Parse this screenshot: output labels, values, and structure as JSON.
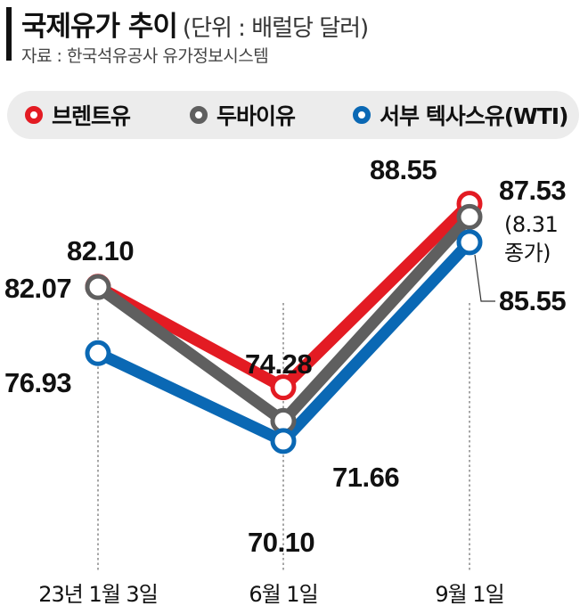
{
  "header": {
    "title": "국제유가 추이",
    "unit": "(단위 : 배럴당 달러)",
    "source": "자료 : 한국석유공사 유가정보시스템"
  },
  "colors": {
    "brent": "#e31b23",
    "dubai": "#5f5f5f",
    "wti": "#0a68b4"
  },
  "chart_data": {
    "type": "line",
    "categories": [
      "23년 1월 3일",
      "6월 1일",
      "9월 1일"
    ],
    "series": [
      {
        "name": "브렌트유",
        "values": [
          82.1,
          74.28,
          88.55
        ],
        "labels": [
          "82.10",
          "74.28",
          "88.55"
        ]
      },
      {
        "name": "두바이유",
        "values": [
          82.07,
          71.66,
          87.53
        ],
        "labels": [
          "82.07",
          "71.66",
          "87.53"
        ]
      },
      {
        "name": "서부 텍사스유(WTI)",
        "values": [
          76.93,
          70.1,
          85.55
        ],
        "labels": [
          "76.93",
          "70.10",
          "85.55"
        ]
      }
    ],
    "annotation": [
      "(8.31",
      "종가)"
    ],
    "legend_position": "top",
    "grid": false
  }
}
